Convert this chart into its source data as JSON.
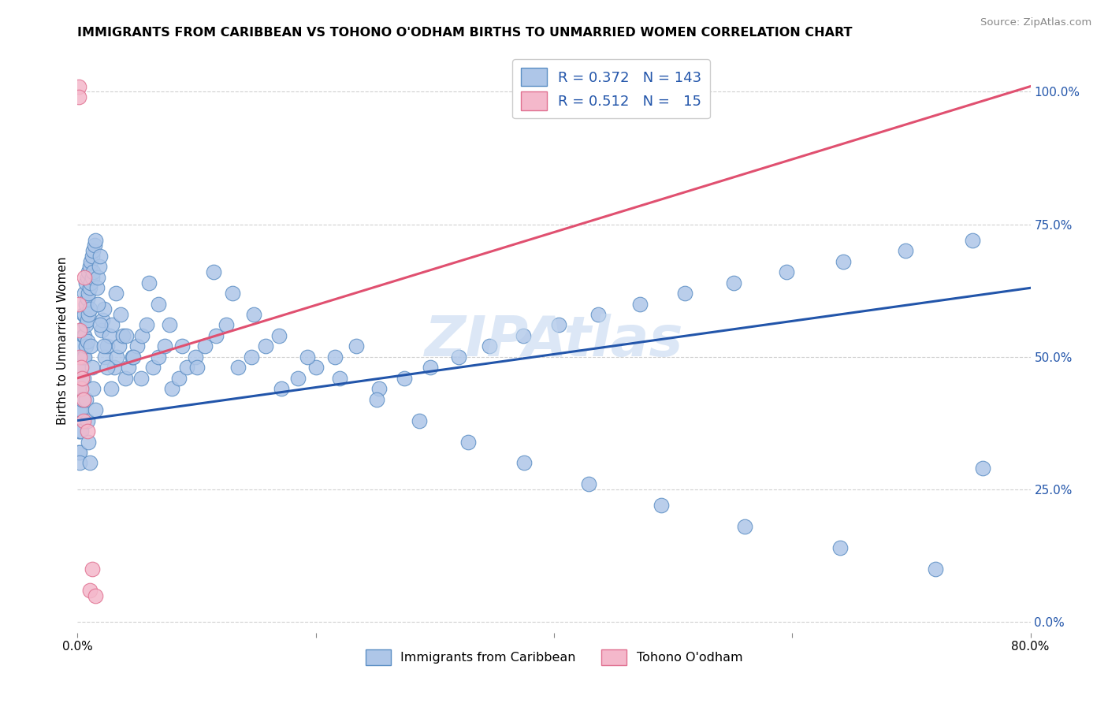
{
  "title": "IMMIGRANTS FROM CARIBBEAN VS TOHONO O'ODHAM BIRTHS TO UNMARRIED WOMEN CORRELATION CHART",
  "source": "Source: ZipAtlas.com",
  "ylabel": "Births to Unmarried Women",
  "right_yticks": [
    "0.0%",
    "25.0%",
    "50.0%",
    "75.0%",
    "100.0%"
  ],
  "right_ytick_vals": [
    0.0,
    0.25,
    0.5,
    0.75,
    1.0
  ],
  "xmin": 0.0,
  "xmax": 0.8,
  "ymin": -0.02,
  "ymax": 1.08,
  "blue_color": "#aec6e8",
  "blue_edge_color": "#5b8ec4",
  "blue_line_color": "#2255aa",
  "pink_color": "#f4b8cb",
  "pink_edge_color": "#e07090",
  "pink_line_color": "#e05070",
  "axis_label_color": "#2255aa",
  "grid_color": "#d0d0d0",
  "watermark_color": "#c5d8f0",
  "blue_trend_y0": 0.38,
  "blue_trend_y1": 0.63,
  "pink_trend_y0": 0.46,
  "pink_trend_y1": 1.01,
  "blue_scatter_x": [
    0.001,
    0.001,
    0.001,
    0.001,
    0.002,
    0.002,
    0.002,
    0.002,
    0.002,
    0.002,
    0.003,
    0.003,
    0.003,
    0.003,
    0.003,
    0.004,
    0.004,
    0.004,
    0.004,
    0.005,
    0.005,
    0.005,
    0.005,
    0.005,
    0.006,
    0.006,
    0.006,
    0.006,
    0.007,
    0.007,
    0.007,
    0.007,
    0.008,
    0.008,
    0.008,
    0.008,
    0.009,
    0.009,
    0.009,
    0.01,
    0.01,
    0.01,
    0.011,
    0.011,
    0.012,
    0.012,
    0.013,
    0.013,
    0.014,
    0.015,
    0.016,
    0.017,
    0.018,
    0.019,
    0.02,
    0.021,
    0.022,
    0.023,
    0.025,
    0.027,
    0.029,
    0.031,
    0.033,
    0.035,
    0.038,
    0.04,
    0.043,
    0.046,
    0.05,
    0.054,
    0.058,
    0.063,
    0.068,
    0.073,
    0.079,
    0.085,
    0.092,
    0.099,
    0.107,
    0.116,
    0.125,
    0.135,
    0.146,
    0.158,
    0.171,
    0.185,
    0.2,
    0.216,
    0.234,
    0.253,
    0.274,
    0.296,
    0.32,
    0.346,
    0.374,
    0.404,
    0.437,
    0.472,
    0.51,
    0.551,
    0.595,
    0.643,
    0.695,
    0.751,
    0.007,
    0.008,
    0.009,
    0.01,
    0.011,
    0.012,
    0.013,
    0.015,
    0.017,
    0.019,
    0.022,
    0.025,
    0.028,
    0.032,
    0.036,
    0.041,
    0.047,
    0.053,
    0.06,
    0.068,
    0.077,
    0.088,
    0.1,
    0.114,
    0.13,
    0.148,
    0.169,
    0.193,
    0.22,
    0.251,
    0.287,
    0.328,
    0.375,
    0.429,
    0.49,
    0.56,
    0.64,
    0.72,
    0.76
  ],
  "blue_scatter_y": [
    0.44,
    0.4,
    0.36,
    0.32,
    0.48,
    0.44,
    0.4,
    0.36,
    0.32,
    0.3,
    0.52,
    0.48,
    0.44,
    0.4,
    0.36,
    0.55,
    0.5,
    0.46,
    0.42,
    0.58,
    0.54,
    0.5,
    0.46,
    0.42,
    0.62,
    0.58,
    0.54,
    0.5,
    0.64,
    0.6,
    0.56,
    0.52,
    0.65,
    0.61,
    0.57,
    0.53,
    0.66,
    0.62,
    0.58,
    0.67,
    0.63,
    0.59,
    0.68,
    0.64,
    0.69,
    0.65,
    0.7,
    0.66,
    0.71,
    0.72,
    0.63,
    0.65,
    0.67,
    0.69,
    0.55,
    0.57,
    0.59,
    0.5,
    0.52,
    0.54,
    0.56,
    0.48,
    0.5,
    0.52,
    0.54,
    0.46,
    0.48,
    0.5,
    0.52,
    0.54,
    0.56,
    0.48,
    0.5,
    0.52,
    0.44,
    0.46,
    0.48,
    0.5,
    0.52,
    0.54,
    0.56,
    0.48,
    0.5,
    0.52,
    0.44,
    0.46,
    0.48,
    0.5,
    0.52,
    0.44,
    0.46,
    0.48,
    0.5,
    0.52,
    0.54,
    0.56,
    0.58,
    0.6,
    0.62,
    0.64,
    0.66,
    0.68,
    0.7,
    0.72,
    0.42,
    0.38,
    0.34,
    0.3,
    0.52,
    0.48,
    0.44,
    0.4,
    0.6,
    0.56,
    0.52,
    0.48,
    0.44,
    0.62,
    0.58,
    0.54,
    0.5,
    0.46,
    0.64,
    0.6,
    0.56,
    0.52,
    0.48,
    0.66,
    0.62,
    0.58,
    0.54,
    0.5,
    0.46,
    0.42,
    0.38,
    0.34,
    0.3,
    0.26,
    0.22,
    0.18,
    0.14,
    0.1,
    0.29
  ],
  "pink_scatter_x": [
    0.001,
    0.001,
    0.001,
    0.002,
    0.002,
    0.003,
    0.003,
    0.004,
    0.005,
    0.005,
    0.006,
    0.008,
    0.01,
    0.012,
    0.015
  ],
  "pink_scatter_y": [
    1.01,
    0.99,
    0.6,
    0.55,
    0.5,
    0.48,
    0.44,
    0.46,
    0.42,
    0.38,
    0.65,
    0.36,
    0.06,
    0.1,
    0.05
  ]
}
